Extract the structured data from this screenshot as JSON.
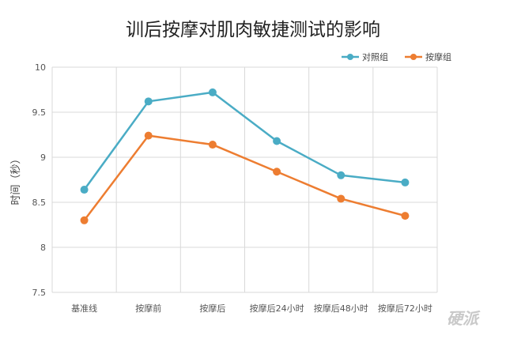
{
  "chart_data": {
    "type": "line",
    "title": "训后按摩对肌肉敏捷测试的影响",
    "xlabel": "",
    "ylabel": "时间（秒）",
    "categories": [
      "基准线",
      "按摩前",
      "按摩后",
      "按摩后24小时",
      "按摩后48小时",
      "按摩后72小时"
    ],
    "ylim": [
      7.5,
      10
    ],
    "yticks": [
      "7.5",
      "8",
      "8.5",
      "9",
      "9.5",
      "10"
    ],
    "grid": true,
    "legend_position": "top-right",
    "series": [
      {
        "name": "对照组",
        "color": "#4aacc5",
        "values": [
          8.64,
          9.62,
          9.72,
          9.18,
          8.8,
          8.72
        ]
      },
      {
        "name": "按摩组",
        "color": "#ed7d31",
        "values": [
          8.3,
          9.24,
          9.14,
          8.84,
          8.54,
          8.35
        ]
      }
    ]
  },
  "watermark": {
    "text": "硬派"
  }
}
